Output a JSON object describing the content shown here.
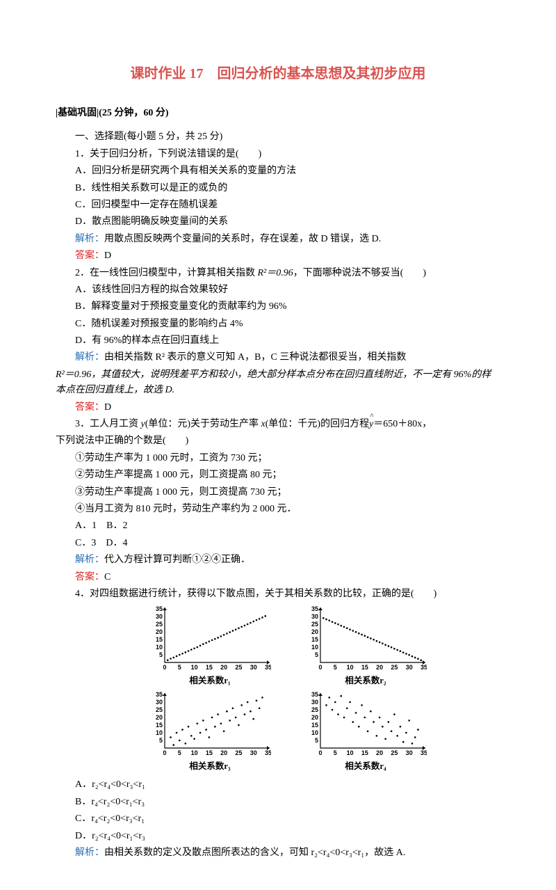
{
  "title": "课时作业 17　回归分析的基本思想及其初步应用",
  "section": "|基础巩固|(25 分钟，60 分)",
  "intro": "一、选择题(每小题 5 分，共 25 分)",
  "q1": {
    "stem": "1．关于回归分析，下列说法错误的是(　　)",
    "a": "A．回归分析是研究两个具有相关关系的变量的方法",
    "b": "B．线性相关系数可以是正的或负的",
    "c": "C．回归模型中一定存在随机误差",
    "d": "D．散点图能明确反映变量间的关系",
    "analysis_label": "解析：",
    "analysis": "用散点图反映两个变量间的关系时，存在误差，故 D 错误，选 D.",
    "answer_label": "答案：",
    "answer": "D"
  },
  "q2": {
    "stem1": "2．在一线性回归模型中，计算其相关指数 ",
    "stem_r": "R²＝0.96",
    "stem2": "，下面哪种说法不够妥当(　　)",
    "a": "A．该线性回归方程的拟合效果较好",
    "b": "B．解释变量对于预报变量变化的贡献率约为 96%",
    "c": "C．随机误差对预报变量的影响约占 4%",
    "d": "D．有 96%的样本点在回归直线上",
    "analysis_label": "解析：",
    "analysis": "由相关指数 R² 表示的意义可知 A，B，C 三种说法都很妥当，相关指数",
    "analysis2": "R²＝0.96，其值较大，说明残差平方和较小，绝大部分样本点分布在回归直线附近，不一定有 96%的样本点在回归直线上，故选 D.",
    "answer_label": "答案：",
    "answer": "D"
  },
  "q3": {
    "stem1": "3．工人月工资 ",
    "stem_y": "y",
    "stem2": "(单位：元)关于劳动生产率 ",
    "stem_x": "x",
    "stem3": "(单位：千元)的回归方程",
    "stem_eq": "＝650＋80x，",
    "stem4": "下列说法中正确的个数是(　　)",
    "opt1": "①劳动生产率为 1 000 元时，工资为 730 元；",
    "opt2": "②劳动生产率提高 1 000 元，则工资提高 80 元；",
    "opt3": "③劳动生产率提高 1 000 元，则工资提高 730 元；",
    "opt4": "④当月工资为 810 元时，劳动生产率约为 2 000 元．",
    "a": "A．1　B．2",
    "c": "C．3　D．4",
    "analysis_label": "解析：",
    "analysis": "代入方程计算可判断①②④正确．",
    "answer_label": "答案：",
    "answer": "C"
  },
  "q4": {
    "stem": "4．对四组数据进行统计，获得以下散点图，关于其相关系数的比较，正确的是(　　)",
    "a": "A．r₂<r₄<0<r₃<r₁",
    "b": "B．r₄<r₂<0<r₁<r₃",
    "c": "C．r₄<r₂<0<r₃<r₁",
    "d": "D．r₂<r₄<0<r₁<r₃",
    "analysis_label": "解析：",
    "analysis": "由相关系数的定义及散点图所表达的含义，可知 r₂<r₄<0<r₃<r₁，故选 A.",
    "labels": {
      "c1": "相关系数r₁",
      "c2": "相关系数r₂",
      "c3": "相关系数r₃",
      "c4": "相关系数r₄"
    }
  },
  "chart": {
    "width": 175,
    "height": 95,
    "xlim": [
      0,
      35
    ],
    "ylim": [
      0,
      35
    ],
    "xticks": [
      0,
      5,
      10,
      15,
      20,
      25,
      30,
      35
    ],
    "yticks": [
      0,
      5,
      10,
      15,
      20,
      25,
      30,
      35
    ],
    "dot_r": 1.3,
    "dot_color": "#000",
    "axis_color": "#000",
    "axis_width": 1.2,
    "label_fontsize": 9
  },
  "scatter": {
    "r1": [
      [
        1,
        1.5
      ],
      [
        2,
        2.5
      ],
      [
        3,
        3.2
      ],
      [
        4,
        4.1
      ],
      [
        5,
        5
      ],
      [
        6,
        5.8
      ],
      [
        7,
        6.6
      ],
      [
        8,
        7.5
      ],
      [
        9,
        8.4
      ],
      [
        10,
        9.2
      ],
      [
        11,
        10
      ],
      [
        12,
        11
      ],
      [
        13,
        12
      ],
      [
        14,
        12.8
      ],
      [
        15,
        13.7
      ],
      [
        16,
        14.6
      ],
      [
        17,
        15.4
      ],
      [
        18,
        16.2
      ],
      [
        19,
        17.1
      ],
      [
        20,
        18
      ],
      [
        21,
        18.9
      ],
      [
        22,
        19.8
      ],
      [
        23,
        20.7
      ],
      [
        24,
        21.5
      ],
      [
        25,
        22.4
      ],
      [
        26,
        23.3
      ],
      [
        27,
        24.1
      ],
      [
        28,
        25
      ],
      [
        29,
        25.9
      ],
      [
        30,
        26.8
      ],
      [
        31,
        27.7
      ],
      [
        32,
        28.5
      ],
      [
        33,
        29.4
      ],
      [
        34,
        30.3
      ]
    ],
    "r2": [
      [
        1,
        29
      ],
      [
        2,
        28.2
      ],
      [
        3,
        27.4
      ],
      [
        4,
        26.5
      ],
      [
        5,
        25.7
      ],
      [
        6,
        24.9
      ],
      [
        7,
        24
      ],
      [
        8,
        23.2
      ],
      [
        9,
        22.4
      ],
      [
        10,
        21.5
      ],
      [
        11,
        20.7
      ],
      [
        12,
        19.9
      ],
      [
        13,
        19
      ],
      [
        14,
        18.2
      ],
      [
        15,
        17.4
      ],
      [
        16,
        16.5
      ],
      [
        17,
        15.7
      ],
      [
        18,
        14.9
      ],
      [
        19,
        14
      ],
      [
        20,
        13.2
      ],
      [
        21,
        12.4
      ],
      [
        22,
        11.5
      ],
      [
        23,
        10.7
      ],
      [
        24,
        9.9
      ],
      [
        25,
        9
      ],
      [
        26,
        8.2
      ],
      [
        27,
        7.4
      ],
      [
        28,
        6.5
      ],
      [
        29,
        5.7
      ],
      [
        30,
        4.9
      ],
      [
        31,
        4
      ],
      [
        32,
        3.2
      ],
      [
        33,
        2.4
      ],
      [
        34,
        1.5
      ]
    ],
    "r3": [
      [
        2,
        7
      ],
      [
        3,
        2
      ],
      [
        4,
        10
      ],
      [
        5,
        5
      ],
      [
        6,
        12
      ],
      [
        7,
        3
      ],
      [
        8,
        14
      ],
      [
        9,
        8
      ],
      [
        10,
        6
      ],
      [
        11,
        16
      ],
      [
        12,
        10
      ],
      [
        13,
        18
      ],
      [
        14,
        12
      ],
      [
        15,
        7
      ],
      [
        16,
        20
      ],
      [
        17,
        14
      ],
      [
        18,
        22
      ],
      [
        19,
        16
      ],
      [
        20,
        11
      ],
      [
        21,
        24
      ],
      [
        22,
        18
      ],
      [
        23,
        26
      ],
      [
        24,
        20
      ],
      [
        25,
        15
      ],
      [
        26,
        28
      ],
      [
        27,
        22
      ],
      [
        28,
        30
      ],
      [
        29,
        24
      ],
      [
        30,
        19
      ],
      [
        31,
        31
      ],
      [
        32,
        26
      ],
      [
        33,
        33
      ]
    ],
    "r4": [
      [
        2,
        28
      ],
      [
        3,
        33
      ],
      [
        4,
        25
      ],
      [
        5,
        30
      ],
      [
        6,
        22
      ],
      [
        7,
        34
      ],
      [
        8,
        20
      ],
      [
        9,
        26
      ],
      [
        10,
        30
      ],
      [
        11,
        17
      ],
      [
        12,
        23
      ],
      [
        13,
        14
      ],
      [
        14,
        28
      ],
      [
        15,
        20
      ],
      [
        16,
        11
      ],
      [
        17,
        24
      ],
      [
        18,
        17
      ],
      [
        19,
        8
      ],
      [
        20,
        20
      ],
      [
        21,
        14
      ],
      [
        22,
        6
      ],
      [
        23,
        17
      ],
      [
        24,
        11
      ],
      [
        25,
        22
      ],
      [
        26,
        8
      ],
      [
        27,
        14
      ],
      [
        28,
        4
      ],
      [
        29,
        10
      ],
      [
        30,
        18
      ],
      [
        31,
        3
      ],
      [
        32,
        7
      ],
      [
        33,
        12
      ]
    ]
  }
}
